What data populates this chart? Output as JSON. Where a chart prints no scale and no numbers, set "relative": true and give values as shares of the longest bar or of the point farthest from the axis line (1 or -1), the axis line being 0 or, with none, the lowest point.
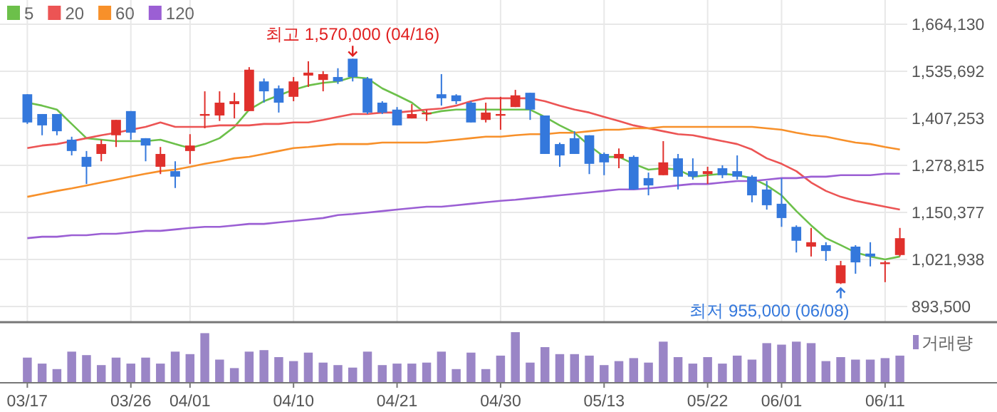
{
  "chart_data": [
    {
      "type": "candlestick",
      "categories": [
        null,
        null,
        null,
        null,
        null,
        null,
        null,
        null,
        null,
        null,
        null,
        null,
        null,
        null,
        null,
        null,
        null,
        null,
        null,
        null,
        null,
        null,
        null,
        null,
        null,
        null,
        null,
        null,
        null,
        null,
        null,
        null,
        null,
        null,
        null,
        null,
        null,
        null,
        null,
        null,
        null,
        null,
        null,
        null,
        null,
        null,
        null,
        null,
        null,
        null,
        null,
        null,
        null,
        null,
        null,
        null,
        null,
        null,
        null,
        null
      ],
      "ohlc": [
        [
          1473000,
          1473000,
          1392000,
          1396000
        ],
        [
          1419000,
          1419000,
          1361000,
          1388000
        ],
        [
          1419000,
          1419000,
          1361000,
          1372000
        ],
        [
          1349000,
          1357000,
          1306000,
          1318000
        ],
        [
          1302000,
          1318000,
          1228000,
          1275000
        ],
        [
          1310000,
          1349000,
          1290000,
          1337000
        ],
        [
          1361000,
          1403000,
          1329000,
          1403000
        ],
        [
          1427000,
          1427000,
          1349000,
          1368000
        ],
        [
          1353000,
          1353000,
          1290000,
          1333000
        ],
        [
          1275000,
          1329000,
          1255000,
          1310000
        ],
        [
          1263000,
          1290000,
          1217000,
          1248000
        ],
        [
          1318000,
          1364000,
          1283000,
          1333000
        ],
        [
          1415000,
          1481000,
          1380000,
          1419000
        ],
        [
          1415000,
          1481000,
          1400000,
          1450000
        ],
        [
          1446000,
          1477000,
          1407000,
          1454000
        ],
        [
          1427000,
          1547000,
          1427000,
          1540000
        ],
        [
          1508000,
          1516000,
          1450000,
          1481000
        ],
        [
          1489000,
          1497000,
          1423000,
          1450000
        ],
        [
          1466000,
          1520000,
          1454000,
          1508000
        ],
        [
          1524000,
          1563000,
          1493000,
          1532000
        ],
        [
          1512000,
          1536000,
          1481000,
          1528000
        ],
        [
          1520000,
          1544000,
          1501000,
          1508000
        ],
        [
          1570000,
          1570000,
          1508000,
          1520000
        ],
        [
          1516000,
          1520000,
          1419000,
          1423000
        ],
        [
          1450000,
          1454000,
          1419000,
          1423000
        ],
        [
          1431000,
          1438000,
          1388000,
          1388000
        ],
        [
          1407000,
          1446000,
          1407000,
          1419000
        ],
        [
          1419000,
          1431000,
          1400000,
          1423000
        ],
        [
          1473000,
          1528000,
          1442000,
          1462000
        ],
        [
          1470000,
          1473000,
          1446000,
          1454000
        ],
        [
          1450000,
          1454000,
          1396000,
          1396000
        ],
        [
          1403000,
          1450000,
          1396000,
          1423000
        ],
        [
          1415000,
          1466000,
          1376000,
          1419000
        ],
        [
          1438000,
          1485000,
          1438000,
          1470000
        ],
        [
          1477000,
          1477000,
          1403000,
          1431000
        ],
        [
          1415000,
          1415000,
          1310000,
          1310000
        ],
        [
          1337000,
          1341000,
          1275000,
          1306000
        ],
        [
          1353000,
          1372000,
          1310000,
          1310000
        ],
        [
          1361000,
          1361000,
          1255000,
          1283000
        ],
        [
          1310000,
          1314000,
          1252000,
          1287000
        ],
        [
          1298000,
          1325000,
          1271000,
          1310000
        ],
        [
          1302000,
          1306000,
          1213000,
          1213000
        ],
        [
          1244000,
          1259000,
          1197000,
          1224000
        ],
        [
          1252000,
          1345000,
          1252000,
          1287000
        ],
        [
          1298000,
          1310000,
          1213000,
          1248000
        ],
        [
          1263000,
          1298000,
          1240000,
          1248000
        ],
        [
          1255000,
          1275000,
          1228000,
          1263000
        ],
        [
          1271000,
          1279000,
          1244000,
          1252000
        ],
        [
          1263000,
          1306000,
          1240000,
          1248000
        ],
        [
          1248000,
          1252000,
          1178000,
          1197000
        ],
        [
          1213000,
          1236000,
          1158000,
          1170000
        ],
        [
          1174000,
          1244000,
          1111000,
          1135000
        ],
        [
          1111000,
          1115000,
          1041000,
          1073000
        ],
        [
          1057000,
          1108000,
          1030000,
          1069000
        ],
        [
          1061000,
          1069000,
          1018000,
          1045000
        ],
        [
          957000,
          1018000,
          955000,
          1006000
        ],
        [
          1057000,
          1061000,
          983000,
          1014000
        ],
        [
          1038000,
          1069000,
          1003000,
          1030000
        ],
        [
          1014000,
          1018000,
          960000,
          1014000
        ],
        [
          1034000,
          1108000,
          1030000,
          1080000
        ]
      ],
      "colors": [
        "#3478dc",
        "#3478dc",
        "#3478dc",
        "#3478dc",
        "#3478dc",
        "#e0302c",
        "#e0302c",
        "#3478dc",
        "#3478dc",
        "#e0302c",
        "#3478dc",
        "#e0302c",
        "#e0302c",
        "#e0302c",
        "#e0302c",
        "#e0302c",
        "#3478dc",
        "#3478dc",
        "#e0302c",
        "#e0302c",
        "#e0302c",
        "#3478dc",
        "#3478dc",
        "#3478dc",
        "#3478dc",
        "#3478dc",
        "#e0302c",
        "#e0302c",
        "#3478dc",
        "#3478dc",
        "#3478dc",
        "#e0302c",
        "#e0302c",
        "#e0302c",
        "#3478dc",
        "#3478dc",
        "#3478dc",
        "#3478dc",
        "#3478dc",
        "#3478dc",
        "#e0302c",
        "#3478dc",
        "#3478dc",
        "#e0302c",
        "#3478dc",
        "#3478dc",
        "#e0302c",
        "#3478dc",
        "#3478dc",
        "#3478dc",
        "#3478dc",
        "#3478dc",
        "#3478dc",
        "#e0302c",
        "#3478dc",
        "#e0302c",
        "#3478dc",
        "#3478dc",
        "#e0302c",
        "#e0302c"
      ],
      "series": [
        {
          "name": "5",
          "type": "line",
          "color": "#6cc04a",
          "values": [
            1450000,
            1442000,
            1431000,
            1392000,
            1353000,
            1349000,
            1345000,
            1345000,
            1345000,
            1349000,
            1337000,
            1326000,
            1337000,
            1353000,
            1384000,
            1431000,
            1454000,
            1470000,
            1485000,
            1497000,
            1504000,
            1508000,
            1520000,
            1516000,
            1489000,
            1470000,
            1450000,
            1419000,
            1427000,
            1431000,
            1431000,
            1431000,
            1431000,
            1431000,
            1431000,
            1411000,
            1388000,
            1368000,
            1333000,
            1302000,
            1302000,
            1283000,
            1267000,
            1271000,
            1267000,
            1248000,
            1252000,
            1256000,
            1252000,
            1244000,
            1224000,
            1197000,
            1154000,
            1115000,
            1080000,
            1061000,
            1041000,
            1030000,
            1022000,
            1030000
          ]
        },
        {
          "name": "20",
          "type": "line",
          "color": "#ec5454",
          "values": [
            1326000,
            1333000,
            1337000,
            1345000,
            1353000,
            1361000,
            1368000,
            1376000,
            1384000,
            1396000,
            1384000,
            1384000,
            1384000,
            1388000,
            1388000,
            1388000,
            1392000,
            1392000,
            1396000,
            1396000,
            1403000,
            1411000,
            1419000,
            1419000,
            1423000,
            1423000,
            1427000,
            1431000,
            1434000,
            1442000,
            1454000,
            1462000,
            1462000,
            1462000,
            1462000,
            1454000,
            1442000,
            1431000,
            1423000,
            1411000,
            1400000,
            1388000,
            1380000,
            1372000,
            1364000,
            1361000,
            1353000,
            1345000,
            1337000,
            1322000,
            1298000,
            1283000,
            1263000,
            1232000,
            1209000,
            1193000,
            1182000,
            1174000,
            1166000,
            1158000
          ]
        },
        {
          "name": "60",
          "type": "line",
          "color": "#f7902a",
          "values": [
            1193000,
            1201000,
            1209000,
            1216000,
            1224000,
            1232000,
            1240000,
            1248000,
            1256000,
            1263000,
            1267000,
            1275000,
            1283000,
            1290000,
            1298000,
            1302000,
            1310000,
            1318000,
            1326000,
            1329000,
            1333000,
            1337000,
            1337000,
            1337000,
            1341000,
            1341000,
            1341000,
            1341000,
            1345000,
            1349000,
            1353000,
            1357000,
            1357000,
            1361000,
            1364000,
            1364000,
            1368000,
            1368000,
            1372000,
            1376000,
            1376000,
            1380000,
            1380000,
            1384000,
            1384000,
            1384000,
            1384000,
            1384000,
            1384000,
            1384000,
            1380000,
            1376000,
            1368000,
            1361000,
            1357000,
            1349000,
            1341000,
            1337000,
            1329000,
            1322000
          ]
        },
        {
          "name": "120",
          "type": "line",
          "color": "#9b5fd4",
          "values": [
            1080000,
            1084000,
            1084000,
            1088000,
            1088000,
            1092000,
            1092000,
            1096000,
            1100000,
            1100000,
            1104000,
            1108000,
            1111000,
            1111000,
            1115000,
            1119000,
            1119000,
            1123000,
            1127000,
            1131000,
            1135000,
            1143000,
            1146000,
            1150000,
            1154000,
            1158000,
            1162000,
            1166000,
            1166000,
            1170000,
            1174000,
            1178000,
            1182000,
            1185000,
            1189000,
            1193000,
            1197000,
            1201000,
            1205000,
            1209000,
            1213000,
            1213000,
            1216000,
            1220000,
            1224000,
            1228000,
            1228000,
            1232000,
            1236000,
            1236000,
            1240000,
            1244000,
            1244000,
            1248000,
            1248000,
            1252000,
            1252000,
            1252000,
            1256000,
            1256000
          ]
        }
      ],
      "ylim": [
        893500,
        1664130
      ],
      "yticks": [
        {
          "value": 893500,
          "label": "893,500"
        },
        {
          "value": 1021938,
          "label": "1,021,938"
        },
        {
          "value": 1150377,
          "label": "1,150,377"
        },
        {
          "value": 1278815,
          "label": "1,278,815"
        },
        {
          "value": 1407253,
          "label": "1,407,253"
        },
        {
          "value": 1535692,
          "label": "1,535,692"
        },
        {
          "value": 1664130,
          "label": "1,664,130"
        }
      ],
      "grid": true,
      "legend": "top left",
      "tick_labels": "y",
      "annotations": [
        "최고 1,570,000 (04/16)",
        "최저 955,000 (06/08)"
      ]
    },
    {
      "type": "bar",
      "relative": true,
      "categories": [
        "03/17",
        null,
        null,
        null,
        null,
        null,
        null,
        "03/26",
        null,
        null,
        null,
        "04/01",
        null,
        null,
        null,
        null,
        null,
        null,
        "04/10",
        null,
        null,
        null,
        null,
        null,
        null,
        "04/21",
        null,
        null,
        null,
        null,
        null,
        null,
        "04/30",
        null,
        null,
        null,
        null,
        null,
        null,
        "05/13",
        null,
        null,
        null,
        null,
        null,
        null,
        "05/22",
        null,
        null,
        null,
        null,
        "06/01",
        null,
        null,
        null,
        null,
        null,
        null,
        "06/11",
        null
      ],
      "series": [
        {
          "name": "거래량",
          "color": "#9a85c6",
          "values": [
            0.49,
            0.37,
            0.26,
            0.61,
            0.54,
            0.34,
            0.49,
            0.37,
            0.49,
            0.37,
            0.61,
            0.56,
            0.98,
            0.45,
            0.28,
            0.61,
            0.64,
            0.5,
            0.42,
            0.59,
            0.39,
            0.34,
            0.29,
            0.61,
            0.34,
            0.37,
            0.37,
            0.39,
            0.61,
            0.26,
            0.59,
            0.26,
            0.53,
            1,
            0.39,
            0.7,
            0.56,
            0.56,
            0.53,
            0.34,
            0.42,
            0.48,
            0.39,
            0.81,
            0.5,
            0.37,
            0.5,
            0.37,
            0.53,
            0.45,
            0.78,
            0.75,
            0.81,
            0.78,
            0.42,
            0.5,
            0.45,
            0.45,
            0.48,
            0.53
          ]
        }
      ],
      "legend": "top right",
      "tick_labels": "x"
    }
  ]
}
